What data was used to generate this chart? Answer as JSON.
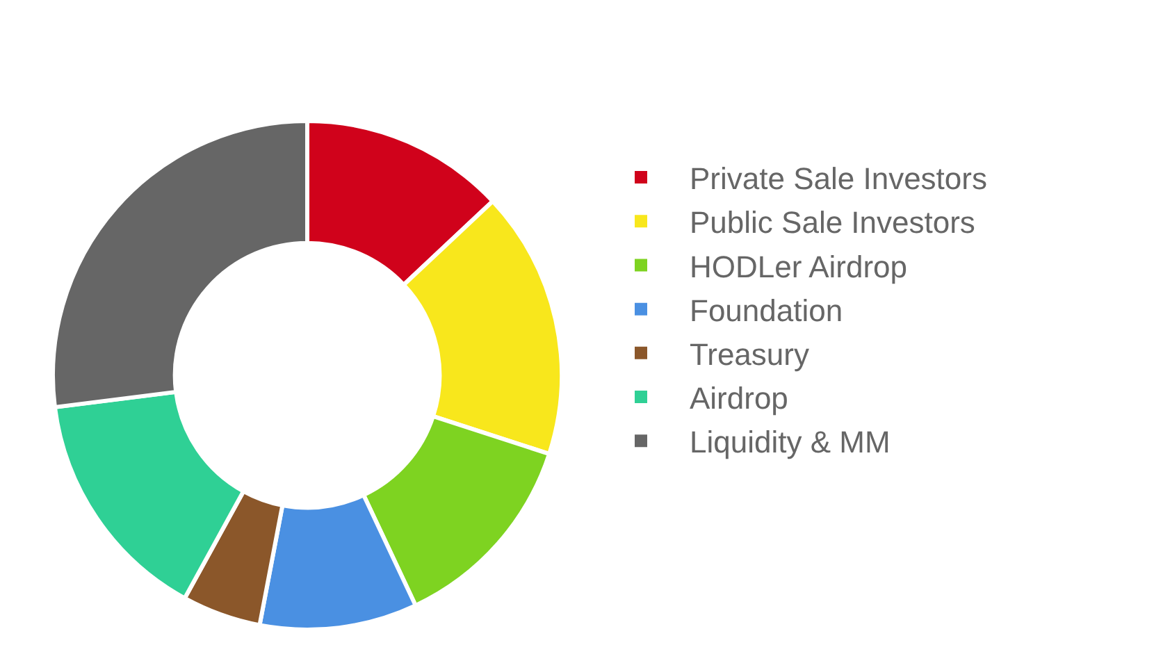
{
  "chart_data": {
    "type": "donut",
    "categories": [
      "Private Sale Investors",
      "Public Sale Investors",
      "HODLer Airdrop",
      "Foundation",
      "Treasury",
      "Airdrop",
      "Liquidity & MM"
    ],
    "values": [
      13,
      17,
      13,
      10,
      5,
      15,
      27
    ],
    "colors": [
      "#d0021b",
      "#f8e71c",
      "#7ed321",
      "#4a90e2",
      "#8b572a",
      "#2fd095",
      "#666666"
    ],
    "legend": "right"
  }
}
